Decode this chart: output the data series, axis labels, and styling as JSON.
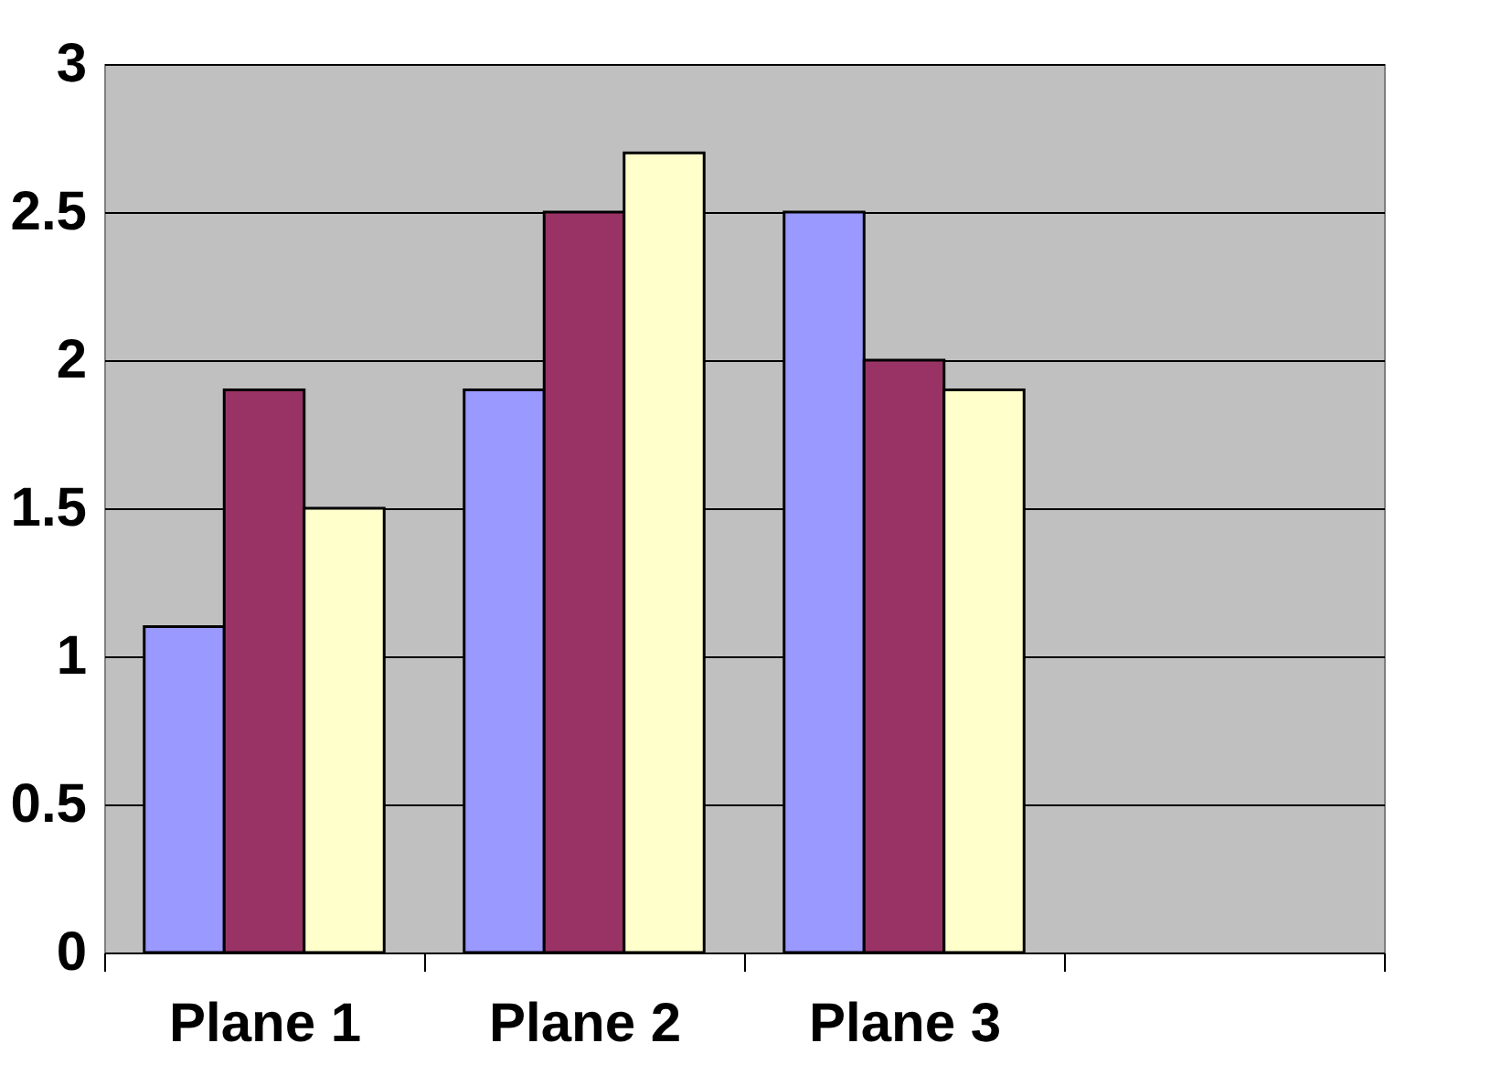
{
  "chart_data": {
    "type": "bar",
    "categories": [
      "Plane 1",
      "Plane 2",
      "Plane 3",
      null
    ],
    "series": [
      {
        "color": "#9999ff",
        "values": [
          1.1,
          1.9,
          2.5,
          null
        ]
      },
      {
        "color": "#993366",
        "values": [
          1.9,
          2.5,
          2.0,
          null
        ]
      },
      {
        "color": "#ffffcc",
        "values": [
          1.5,
          2.7,
          1.9,
          null
        ]
      }
    ],
    "ylim": [
      0,
      3
    ],
    "yticks": [
      0,
      0.5,
      1,
      1.5,
      2,
      2.5,
      3
    ],
    "grid": "y",
    "legend": false
  }
}
